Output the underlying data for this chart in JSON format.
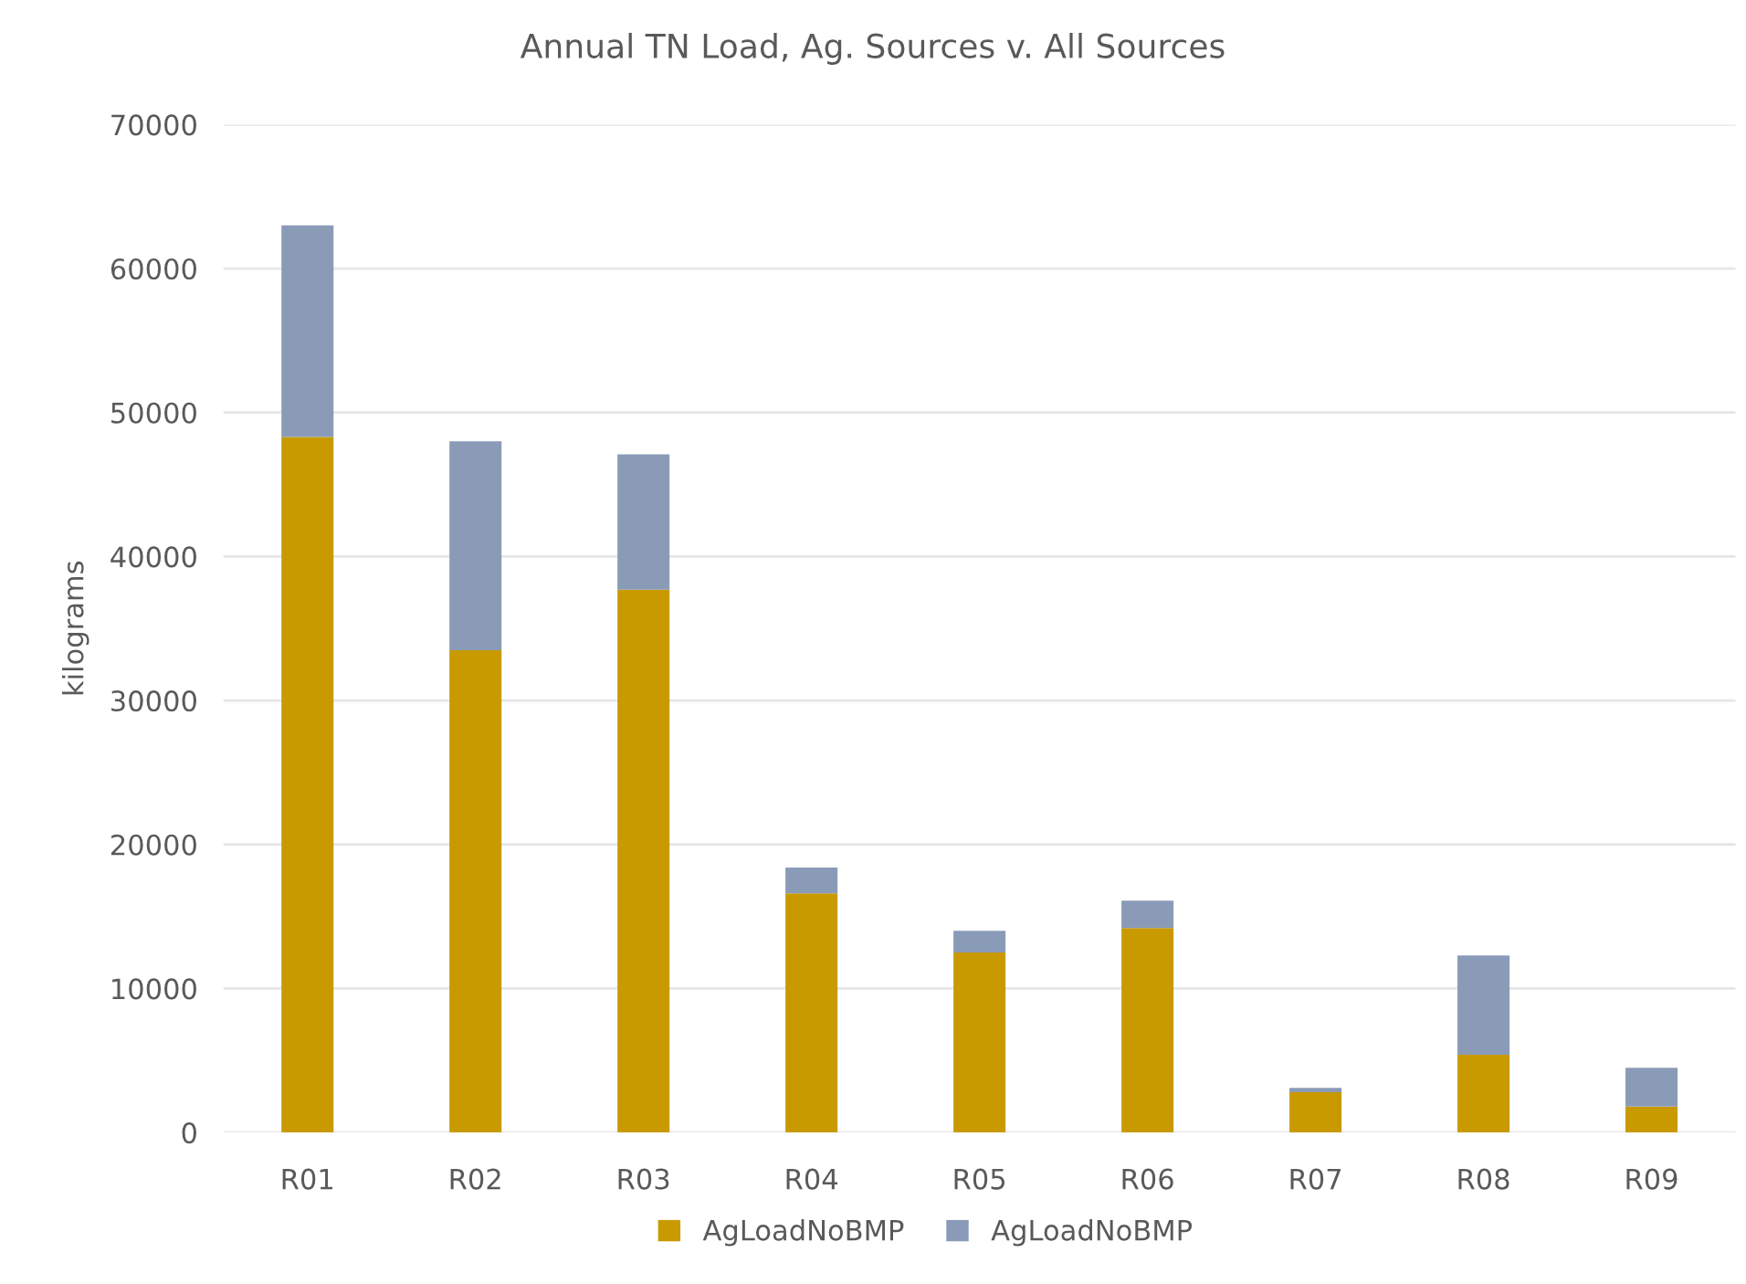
{
  "chart_data": {
    "type": "bar",
    "title": "Annual TN Load, Ag. Sources v. All Sources",
    "ylabel": "kilograms",
    "categories": [
      "R01",
      "R02",
      "R03",
      "R04",
      "R05",
      "R06",
      "R07",
      "R08",
      "R09"
    ],
    "stacked": true,
    "series": [
      {
        "name": "AgLoadNoBMP",
        "color": "#c89a00",
        "values": [
          48300,
          33500,
          37700,
          16600,
          12500,
          14200,
          2800,
          5400,
          1800
        ]
      },
      {
        "name": "AgLoadNoBMP",
        "color": "#8a9bb8",
        "values": [
          14700,
          14500,
          9400,
          1800,
          1500,
          1900,
          300,
          6900,
          2700
        ]
      }
    ],
    "ylim": [
      0,
      70000
    ],
    "yticks": [
      0,
      10000,
      20000,
      30000,
      40000,
      50000,
      60000,
      70000
    ],
    "grid": "y",
    "legend": "bottom"
  }
}
